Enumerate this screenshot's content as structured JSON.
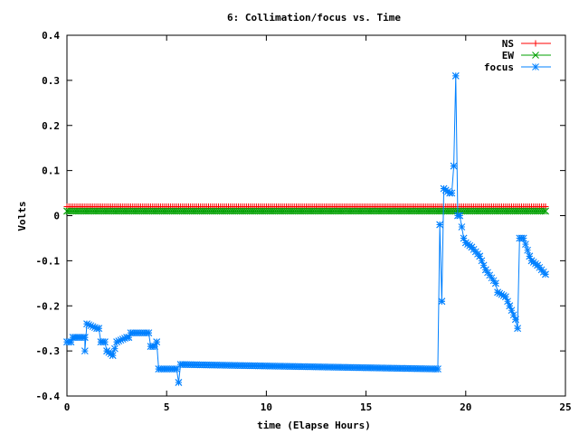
{
  "chart_data": {
    "type": "line",
    "title": "6: Collimation/focus vs. Time",
    "xlabel": "time (Elapse Hours)",
    "ylabel": "Volts",
    "xlim": [
      0,
      25
    ],
    "ylim": [
      -0.4,
      0.4
    ],
    "xticks": [
      0,
      5,
      10,
      15,
      20,
      25
    ],
    "yticks": [
      -0.4,
      -0.3,
      -0.2,
      -0.1,
      0,
      0.1,
      0.2,
      0.3,
      0.4
    ],
    "xtick_labels": [
      "0",
      "5",
      "10",
      "15",
      "20",
      "25"
    ],
    "ytick_labels": [
      "-0.4",
      "-0.3",
      "-0.2",
      "-0.1",
      "0",
      "0.1",
      "0.2",
      "0.3",
      "0.4"
    ],
    "grid": false,
    "legend_position": "top-right",
    "series": [
      {
        "name": "NS",
        "color": "#ff0000",
        "marker": "plus",
        "x": [
          0,
          24
        ],
        "y": [
          0.02,
          0.02
        ],
        "sample_step": 0.1
      },
      {
        "name": "EW",
        "color": "#00a000",
        "marker": "cross",
        "x": [
          0,
          24
        ],
        "y": [
          0.01,
          0.01
        ],
        "sample_step": 0.1
      },
      {
        "name": "focus",
        "color": "#0080ff",
        "marker": "star",
        "x": [
          0.0,
          0.2,
          0.3,
          0.5,
          0.9,
          0.9,
          1.0,
          1.5,
          1.6,
          1.7,
          1.9,
          2.0,
          2.3,
          2.5,
          3.0,
          3.1,
          3.2,
          4.1,
          4.2,
          4.4,
          4.5,
          4.6,
          4.6,
          5.0,
          5.5,
          5.6,
          5.7,
          18.5,
          18.6,
          18.7,
          18.8,
          18.9,
          19.2,
          19.3,
          19.4,
          19.5,
          19.6,
          19.7,
          19.9,
          20.0,
          20.3,
          20.7,
          21.0,
          21.5,
          21.6,
          22.0,
          22.2,
          22.5,
          22.6,
          22.7,
          22.8,
          22.9,
          23.2,
          23.3,
          23.6,
          24.0
        ],
        "y": [
          -0.28,
          -0.28,
          -0.27,
          -0.27,
          -0.27,
          -0.3,
          -0.24,
          -0.25,
          -0.25,
          -0.28,
          -0.28,
          -0.3,
          -0.31,
          -0.28,
          -0.27,
          -0.27,
          -0.26,
          -0.26,
          -0.29,
          -0.29,
          -0.28,
          -0.34,
          -0.34,
          -0.34,
          -0.34,
          -0.37,
          -0.33,
          -0.34,
          -0.34,
          -0.02,
          -0.19,
          0.06,
          0.05,
          0.05,
          0.11,
          0.31,
          0.0,
          0.0,
          -0.05,
          -0.06,
          -0.07,
          -0.09,
          -0.12,
          -0.15,
          -0.17,
          -0.18,
          -0.2,
          -0.23,
          -0.25,
          -0.05,
          -0.05,
          -0.05,
          -0.09,
          -0.1,
          -0.11,
          -0.13
        ],
        "sample_step": 0.1
      }
    ]
  }
}
